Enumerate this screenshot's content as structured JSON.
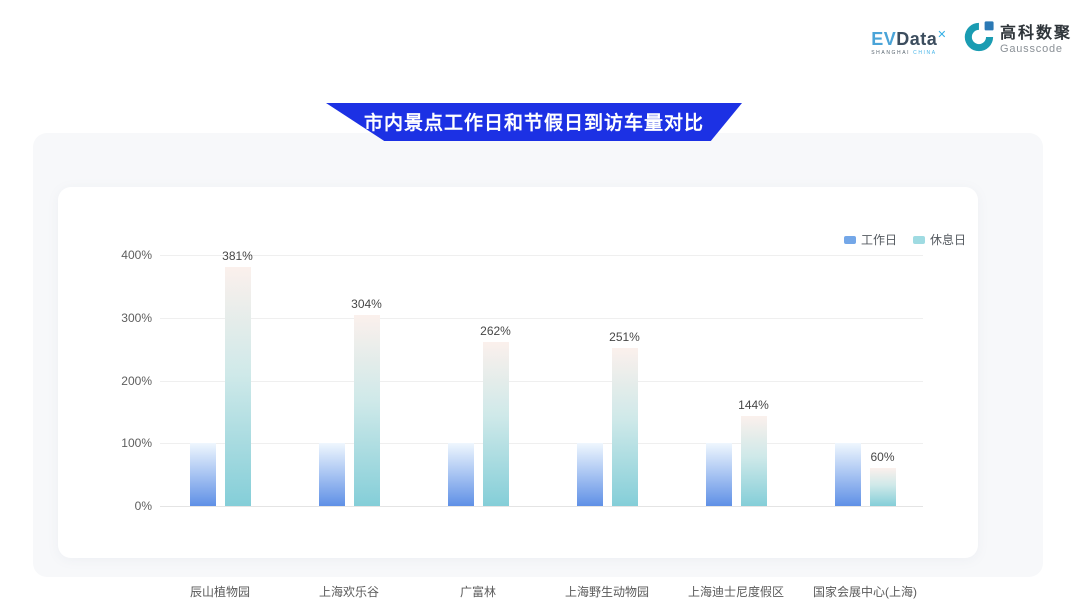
{
  "header": {
    "evdata_logo": {
      "ev": "EV",
      "data": "Data",
      "sup": "✕",
      "sub_left": "SHANGHAI ",
      "sub_right": "CHINA"
    },
    "gausscode_logo": {
      "cn": "高科数聚",
      "en": "Gausscode"
    }
  },
  "banner": {
    "title": "市内景点工作日和节假日到访车量对比",
    "color": "#1c31e4"
  },
  "chart_data": {
    "type": "bar",
    "title": "市内景点工作日和节假日到访车量对比",
    "categories": [
      "辰山植物园",
      "上海欢乐谷",
      "广富林",
      "上海野生动物园",
      "上海迪士尼度假区",
      "国家会展中心(上海)"
    ],
    "series": [
      {
        "name": "工作日",
        "values": [
          100,
          100,
          100,
          100,
          100,
          100
        ],
        "gradient_top": "#eff7fe",
        "gradient_bottom": "#5f90e6",
        "legend_color": "#74a7e8",
        "show_labels": false
      },
      {
        "name": "休息日",
        "values": [
          381,
          304,
          262,
          251,
          144,
          60
        ],
        "gradient_top": "#fbf0ec",
        "gradient_mid": "#cfe9e9",
        "gradient_bottom": "#84ced8",
        "legend_color": "#9fdbe2",
        "show_labels": true
      }
    ],
    "value_labels": [
      "381%",
      "304%",
      "262%",
      "251%",
      "144%",
      "60%"
    ],
    "yticks": [
      "0%",
      "100%",
      "200%",
      "300%",
      "400%"
    ],
    "ylim": [
      0,
      400
    ],
    "grid": true,
    "legend_position": "top-right",
    "unit": "%"
  }
}
